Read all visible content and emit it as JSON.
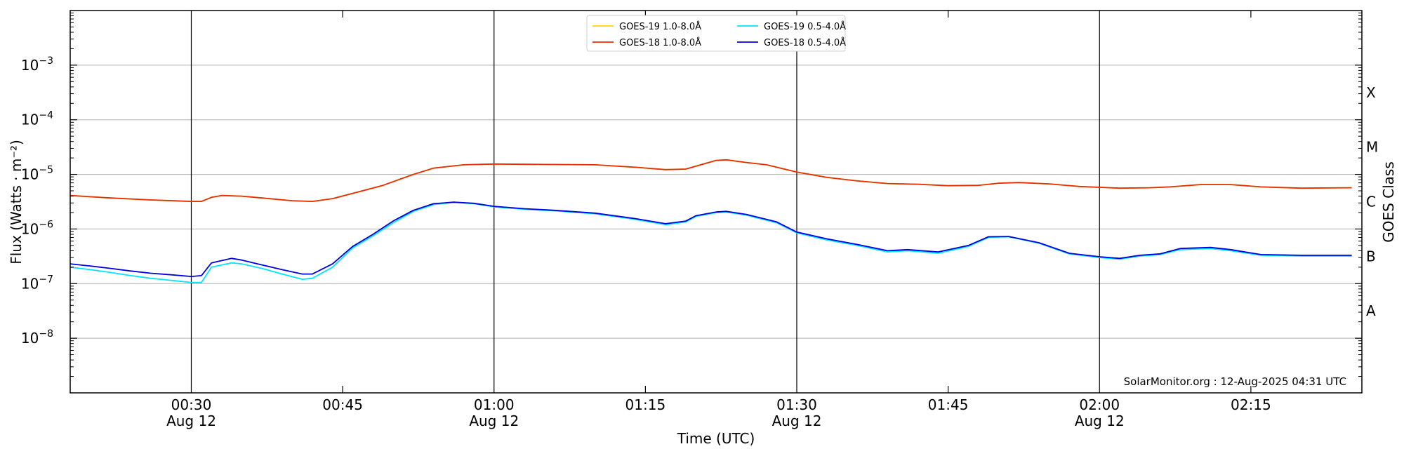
{
  "chart_data": {
    "type": "line",
    "xlabel": "Time (UTC)",
    "ylabel": "Flux (Watts · m⁻²)",
    "right_label": "GOES Class",
    "xlim": [
      "00:18",
      "02:26"
    ],
    "ylim": [
      1e-09,
      0.01
    ],
    "y_scale": "log",
    "grid": "horizontal",
    "x_ticks": [
      {
        "t": "00:30",
        "label": "00:30",
        "sublabel": "Aug 12",
        "major": true
      },
      {
        "t": "00:45",
        "label": "00:45",
        "sublabel": "",
        "major": false
      },
      {
        "t": "01:00",
        "label": "01:00",
        "sublabel": "Aug 12",
        "major": true
      },
      {
        "t": "01:15",
        "label": "01:15",
        "sublabel": "",
        "major": false
      },
      {
        "t": "01:30",
        "label": "01:30",
        "sublabel": "Aug 12",
        "major": true
      },
      {
        "t": "01:45",
        "label": "01:45",
        "sublabel": "",
        "major": false
      },
      {
        "t": "02:00",
        "label": "02:00",
        "sublabel": "Aug 12",
        "major": true
      },
      {
        "t": "02:15",
        "label": "02:15",
        "sublabel": "",
        "major": false
      }
    ],
    "y_ticks": [
      {
        "exp": -8,
        "label": "10"
      },
      {
        "exp": -7,
        "label": "10"
      },
      {
        "exp": -6,
        "label": "10"
      },
      {
        "exp": -5,
        "label": "10"
      },
      {
        "exp": -4,
        "label": "10"
      },
      {
        "exp": -3,
        "label": "10"
      }
    ],
    "goes_classes": [
      {
        "label": "A",
        "value": 1e-08
      },
      {
        "label": "B",
        "value": 1e-07
      },
      {
        "label": "C",
        "value": 1e-06
      },
      {
        "label": "M",
        "value": 1e-05
      },
      {
        "label": "X",
        "value": 0.0001
      }
    ],
    "legend_position": "top-center",
    "legend": [
      {
        "name": "GOES-19 1.0-8.0Å",
        "color": "#ffd500"
      },
      {
        "name": "GOES-19 0.5-4.0Å",
        "color": "#00e5ff"
      },
      {
        "name": "GOES-18 1.0-8.0Å",
        "color": "#e62e00"
      },
      {
        "name": "GOES-18 0.5-4.0Å",
        "color": "#0000dd"
      }
    ],
    "credit": "SolarMonitor.org : 12-Aug-2025 04:31 UTC",
    "series": [
      {
        "name": "GOES-19 1.0-8.0Å",
        "color": "#ffd500",
        "points": [
          [
            "00:18",
            4.1e-06
          ],
          [
            "00:22",
            3.7e-06
          ],
          [
            "00:26",
            3.4e-06
          ],
          [
            "00:30",
            3.2e-06
          ],
          [
            "00:31",
            3.2e-06
          ],
          [
            "00:32",
            3.8e-06
          ],
          [
            "00:33",
            4.1e-06
          ],
          [
            "00:35",
            4e-06
          ],
          [
            "00:37",
            3.7e-06
          ],
          [
            "00:40",
            3.3e-06
          ],
          [
            "00:42",
            3.2e-06
          ],
          [
            "00:44",
            3.6e-06
          ],
          [
            "00:46",
            4.5e-06
          ],
          [
            "00:49",
            6.3e-06
          ],
          [
            "00:52",
            1e-05
          ],
          [
            "00:54",
            1.3e-05
          ],
          [
            "00:57",
            1.5e-05
          ],
          [
            "01:00",
            1.55e-05
          ],
          [
            "01:05",
            1.52e-05
          ],
          [
            "01:10",
            1.5e-05
          ],
          [
            "01:14",
            1.35e-05
          ],
          [
            "01:17",
            1.22e-05
          ],
          [
            "01:19",
            1.25e-05
          ],
          [
            "01:21",
            1.6e-05
          ],
          [
            "01:22",
            1.8e-05
          ],
          [
            "01:23",
            1.85e-05
          ],
          [
            "01:25",
            1.65e-05
          ],
          [
            "01:27",
            1.5e-05
          ],
          [
            "01:30",
            1.1e-05
          ],
          [
            "01:33",
            8.8e-06
          ],
          [
            "01:36",
            7.6e-06
          ],
          [
            "01:39",
            6.8e-06
          ],
          [
            "01:42",
            6.6e-06
          ],
          [
            "01:45",
            6.2e-06
          ],
          [
            "01:48",
            6.3e-06
          ],
          [
            "01:50",
            6.9e-06
          ],
          [
            "01:52",
            7.1e-06
          ],
          [
            "01:55",
            6.7e-06
          ],
          [
            "01:58",
            6e-06
          ],
          [
            "02:00",
            5.8e-06
          ],
          [
            "02:02",
            5.6e-06
          ],
          [
            "02:05",
            5.7e-06
          ],
          [
            "02:07",
            5.9e-06
          ],
          [
            "02:10",
            6.5e-06
          ],
          [
            "02:13",
            6.5e-06
          ],
          [
            "02:16",
            5.9e-06
          ],
          [
            "02:20",
            5.6e-06
          ],
          [
            "02:25",
            5.7e-06
          ]
        ]
      },
      {
        "name": "GOES-18 1.0-8.0Å",
        "color": "#e62e00",
        "points": [
          [
            "00:18",
            4.1e-06
          ],
          [
            "00:22",
            3.7e-06
          ],
          [
            "00:26",
            3.4e-06
          ],
          [
            "00:30",
            3.2e-06
          ],
          [
            "00:31",
            3.2e-06
          ],
          [
            "00:32",
            3.8e-06
          ],
          [
            "00:33",
            4.1e-06
          ],
          [
            "00:35",
            4e-06
          ],
          [
            "00:37",
            3.7e-06
          ],
          [
            "00:40",
            3.3e-06
          ],
          [
            "00:42",
            3.2e-06
          ],
          [
            "00:44",
            3.6e-06
          ],
          [
            "00:46",
            4.5e-06
          ],
          [
            "00:49",
            6.3e-06
          ],
          [
            "00:52",
            1e-05
          ],
          [
            "00:54",
            1.3e-05
          ],
          [
            "00:57",
            1.5e-05
          ],
          [
            "01:00",
            1.55e-05
          ],
          [
            "01:05",
            1.52e-05
          ],
          [
            "01:10",
            1.5e-05
          ],
          [
            "01:14",
            1.35e-05
          ],
          [
            "01:17",
            1.22e-05
          ],
          [
            "01:19",
            1.25e-05
          ],
          [
            "01:21",
            1.6e-05
          ],
          [
            "01:22",
            1.8e-05
          ],
          [
            "01:23",
            1.85e-05
          ],
          [
            "01:25",
            1.65e-05
          ],
          [
            "01:27",
            1.5e-05
          ],
          [
            "01:30",
            1.1e-05
          ],
          [
            "01:33",
            8.8e-06
          ],
          [
            "01:36",
            7.6e-06
          ],
          [
            "01:39",
            6.8e-06
          ],
          [
            "01:42",
            6.6e-06
          ],
          [
            "01:45",
            6.2e-06
          ],
          [
            "01:48",
            6.3e-06
          ],
          [
            "01:50",
            6.9e-06
          ],
          [
            "01:52",
            7.1e-06
          ],
          [
            "01:55",
            6.7e-06
          ],
          [
            "01:58",
            6e-06
          ],
          [
            "02:00",
            5.8e-06
          ],
          [
            "02:02",
            5.6e-06
          ],
          [
            "02:05",
            5.7e-06
          ],
          [
            "02:07",
            5.9e-06
          ],
          [
            "02:10",
            6.5e-06
          ],
          [
            "02:13",
            6.5e-06
          ],
          [
            "02:16",
            5.9e-06
          ],
          [
            "02:20",
            5.6e-06
          ],
          [
            "02:25",
            5.7e-06
          ]
        ]
      },
      {
        "name": "GOES-19 0.5-4.0Å",
        "color": "#00e5ff",
        "points": [
          [
            "00:18",
            2e-07
          ],
          [
            "00:20",
            1.8e-07
          ],
          [
            "00:22",
            1.6e-07
          ],
          [
            "00:24",
            1.4e-07
          ],
          [
            "00:26",
            1.25e-07
          ],
          [
            "00:28",
            1.15e-07
          ],
          [
            "00:30",
            1.05e-07
          ],
          [
            "00:31",
            1.05e-07
          ],
          [
            "00:32",
            2e-07
          ],
          [
            "00:34",
            2.4e-07
          ],
          [
            "00:35",
            2.3e-07
          ],
          [
            "00:37",
            1.9e-07
          ],
          [
            "00:39",
            1.5e-07
          ],
          [
            "00:41",
            1.2e-07
          ],
          [
            "00:42",
            1.25e-07
          ],
          [
            "00:44",
            2e-07
          ],
          [
            "00:46",
            4.5e-07
          ],
          [
            "00:48",
            7.5e-07
          ],
          [
            "00:50",
            1.3e-06
          ],
          [
            "00:52",
            2.1e-06
          ],
          [
            "00:54",
            2.8e-06
          ],
          [
            "00:56",
            3.1e-06
          ],
          [
            "00:58",
            2.9e-06
          ],
          [
            "01:00",
            2.55e-06
          ],
          [
            "01:03",
            2.3e-06
          ],
          [
            "01:06",
            2.15e-06
          ],
          [
            "01:10",
            1.9e-06
          ],
          [
            "01:14",
            1.5e-06
          ],
          [
            "01:17",
            1.2e-06
          ],
          [
            "01:19",
            1.35e-06
          ],
          [
            "01:20",
            1.7e-06
          ],
          [
            "01:22",
            2e-06
          ],
          [
            "01:23",
            2.05e-06
          ],
          [
            "01:25",
            1.8e-06
          ],
          [
            "01:28",
            1.3e-06
          ],
          [
            "01:30",
            8.5e-07
          ],
          [
            "01:33",
            6.3e-07
          ],
          [
            "01:36",
            5e-07
          ],
          [
            "01:39",
            3.8e-07
          ],
          [
            "01:41",
            4e-07
          ],
          [
            "01:44",
            3.6e-07
          ],
          [
            "01:47",
            4.8e-07
          ],
          [
            "01:49",
            7e-07
          ],
          [
            "01:51",
            7.2e-07
          ],
          [
            "01:54",
            5.5e-07
          ],
          [
            "01:57",
            3.5e-07
          ],
          [
            "02:00",
            3e-07
          ],
          [
            "02:02",
            2.8e-07
          ],
          [
            "02:04",
            3.2e-07
          ],
          [
            "02:06",
            3.4e-07
          ],
          [
            "02:08",
            4.2e-07
          ],
          [
            "02:11",
            4.4e-07
          ],
          [
            "02:13",
            4e-07
          ],
          [
            "02:16",
            3.3e-07
          ],
          [
            "02:20",
            3.2e-07
          ],
          [
            "02:25",
            3.2e-07
          ]
        ]
      },
      {
        "name": "GOES-18 0.5-4.0Å",
        "color": "#0000dd",
        "points": [
          [
            "00:18",
            2.3e-07
          ],
          [
            "00:20",
            2.1e-07
          ],
          [
            "00:22",
            1.9e-07
          ],
          [
            "00:24",
            1.7e-07
          ],
          [
            "00:26",
            1.55e-07
          ],
          [
            "00:28",
            1.45e-07
          ],
          [
            "00:30",
            1.35e-07
          ],
          [
            "00:31",
            1.4e-07
          ],
          [
            "00:32",
            2.4e-07
          ],
          [
            "00:34",
            2.9e-07
          ],
          [
            "00:35",
            2.7e-07
          ],
          [
            "00:37",
            2.2e-07
          ],
          [
            "00:39",
            1.8e-07
          ],
          [
            "00:41",
            1.5e-07
          ],
          [
            "00:42",
            1.5e-07
          ],
          [
            "00:44",
            2.3e-07
          ],
          [
            "00:46",
            4.8e-07
          ],
          [
            "00:48",
            8e-07
          ],
          [
            "00:50",
            1.4e-06
          ],
          [
            "00:52",
            2.2e-06
          ],
          [
            "00:54",
            2.9e-06
          ],
          [
            "00:56",
            3.1e-06
          ],
          [
            "00:58",
            2.95e-06
          ],
          [
            "01:00",
            2.6e-06
          ],
          [
            "01:03",
            2.35e-06
          ],
          [
            "01:06",
            2.2e-06
          ],
          [
            "01:10",
            1.95e-06
          ],
          [
            "01:14",
            1.55e-06
          ],
          [
            "01:17",
            1.25e-06
          ],
          [
            "01:19",
            1.4e-06
          ],
          [
            "01:20",
            1.75e-06
          ],
          [
            "01:22",
            2.05e-06
          ],
          [
            "01:23",
            2.1e-06
          ],
          [
            "01:25",
            1.85e-06
          ],
          [
            "01:28",
            1.35e-06
          ],
          [
            "01:30",
            8.8e-07
          ],
          [
            "01:33",
            6.6e-07
          ],
          [
            "01:36",
            5.2e-07
          ],
          [
            "01:39",
            4e-07
          ],
          [
            "01:41",
            4.2e-07
          ],
          [
            "01:44",
            3.8e-07
          ],
          [
            "01:47",
            5e-07
          ],
          [
            "01:49",
            7.2e-07
          ],
          [
            "01:51",
            7.3e-07
          ],
          [
            "01:54",
            5.6e-07
          ],
          [
            "01:57",
            3.6e-07
          ],
          [
            "02:00",
            3.1e-07
          ],
          [
            "02:02",
            2.9e-07
          ],
          [
            "02:04",
            3.3e-07
          ],
          [
            "02:06",
            3.5e-07
          ],
          [
            "02:08",
            4.4e-07
          ],
          [
            "02:11",
            4.6e-07
          ],
          [
            "02:13",
            4.2e-07
          ],
          [
            "02:16",
            3.4e-07
          ],
          [
            "02:20",
            3.3e-07
          ],
          [
            "02:25",
            3.3e-07
          ]
        ]
      }
    ]
  }
}
